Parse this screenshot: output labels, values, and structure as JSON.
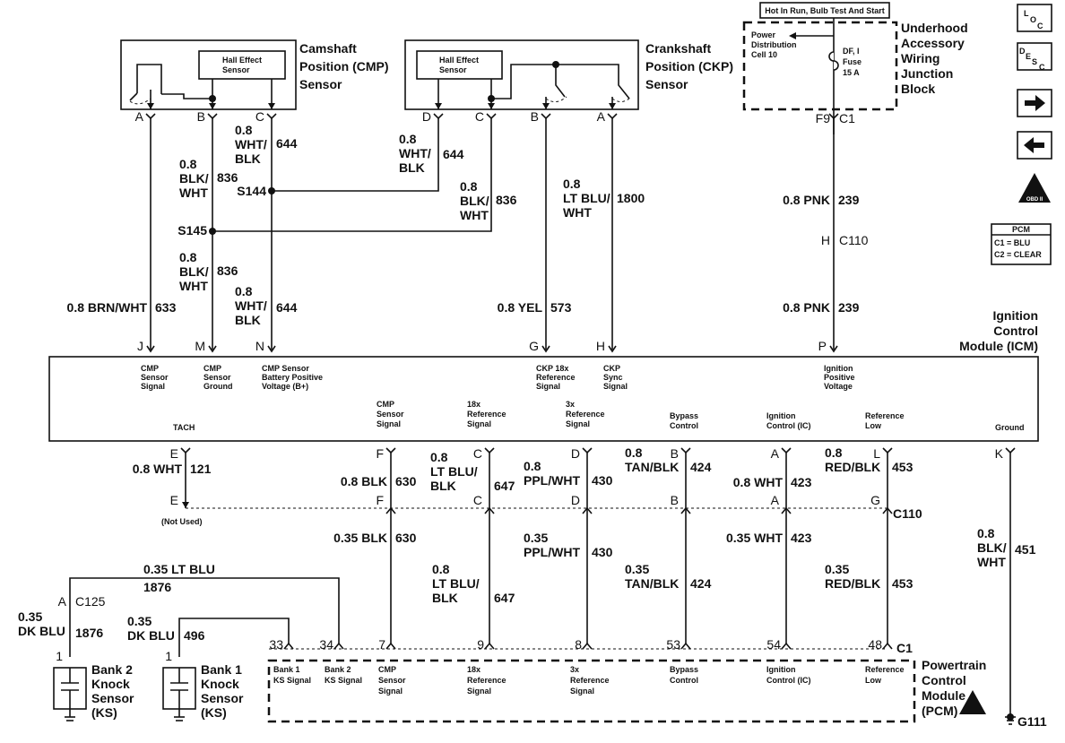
{
  "cmp": {
    "title": [
      "Camshaft",
      "Position (CMP)",
      "Sensor"
    ],
    "hall": [
      "Hall Effect",
      "Sensor"
    ],
    "pins": [
      "A",
      "B",
      "C"
    ]
  },
  "ckp": {
    "title": [
      "Crankshaft",
      "Position (CKP)",
      "Sensor"
    ],
    "hall": [
      "Hall Effect",
      "Sensor"
    ],
    "pins": [
      "D",
      "C",
      "B",
      "A"
    ]
  },
  "fuse": {
    "hot": "Hot In Run, Bulb Test And Start",
    "pdc": [
      "Power",
      "Distribution",
      "Cell 10"
    ],
    "fuse": [
      "DF, I",
      "Fuse",
      "15 A"
    ],
    "block": [
      "Underhood",
      "Accessory",
      "Wiring",
      "Junction",
      "Block"
    ],
    "conn": [
      "F9",
      "C1"
    ],
    "c110": [
      "H",
      "C110"
    ]
  },
  "wires": {
    "w633": [
      "0.8 BRN/WHT",
      "633"
    ],
    "w836a": [
      "0.8",
      "BLK/",
      "WHT",
      "836"
    ],
    "w644a": [
      "0.8",
      "WHT/",
      "BLK",
      "644"
    ],
    "w644b": [
      "0.8",
      "WHT/",
      "BLK",
      "644"
    ],
    "w836b": [
      "0.8",
      "BLK/",
      "WHT",
      "836"
    ],
    "w836c": [
      "0.8",
      "BLK/",
      "WHT",
      "836"
    ],
    "w644c": [
      "0.8",
      "WHT/",
      "BLK",
      "644"
    ],
    "w1800": [
      "0.8",
      "LT BLU/",
      "WHT",
      "1800"
    ],
    "w573": [
      "0.8 YEL",
      "573"
    ],
    "w239a": [
      "0.8 PNK",
      "239"
    ],
    "w239b": [
      "0.8 PNK",
      "239"
    ],
    "s144": "S144",
    "s145": "S145"
  },
  "icm": {
    "title": [
      "Ignition",
      "Control",
      "Module (ICM)"
    ],
    "top_pins": [
      "J",
      "M",
      "N",
      "G",
      "H",
      "P"
    ],
    "top_labels": [
      [
        "CMP",
        "Sensor",
        "Signal"
      ],
      [
        "CMP",
        "Sensor",
        "Ground"
      ],
      [
        "CMP Sensor",
        "Battery Positive",
        "Voltage (B+)"
      ],
      [
        "CKP 18x",
        "Reference",
        "Signal"
      ],
      [
        "CKP",
        "Sync",
        "Signal"
      ],
      [
        "Ignition",
        "Positive",
        "Voltage"
      ]
    ],
    "bottom_labels": [
      [
        "TACH"
      ],
      [
        "CMP",
        "Sensor",
        "Signal"
      ],
      [
        "18x",
        "Reference",
        "Signal"
      ],
      [
        "3x",
        "Reference",
        "Signal"
      ],
      [
        "Bypass",
        "Control"
      ],
      [
        "Ignition",
        "Control (IC)"
      ],
      [
        "Reference",
        "Low"
      ],
      [
        "Ground"
      ]
    ],
    "bottom_pins": [
      "E",
      "F",
      "C",
      "D",
      "B",
      "A",
      "L",
      "K"
    ]
  },
  "lower": {
    "upper_wires": [
      [
        "0.8 WHT",
        "121"
      ],
      [
        "0.8 BLK",
        "630"
      ],
      [
        "0.8",
        "LT BLU/",
        "BLK",
        "647"
      ],
      [
        "0.8",
        "PPL/WHT",
        "430"
      ],
      [
        "0.8",
        "TAN/BLK",
        "424"
      ],
      [
        "0.8 WHT",
        "423"
      ],
      [
        "0.8",
        "RED/BLK",
        "453"
      ]
    ],
    "c110_pins": [
      "E",
      "F",
      "C",
      "D",
      "B",
      "A",
      "G"
    ],
    "c110": "C110",
    "not_used": "(Not Used)",
    "lower_wires": [
      [
        "0.35 BLK",
        "630"
      ],
      [
        "0.8",
        "LT BLU/",
        "BLK",
        "647"
      ],
      [
        "0.35",
        "PPL/WHT",
        "430"
      ],
      [
        "0.35",
        "TAN/BLK",
        "424"
      ],
      [
        "0.35 WHT",
        "423"
      ],
      [
        "0.35",
        "RED/BLK",
        "453"
      ]
    ],
    "ground_wire": [
      "0.8",
      "BLK/",
      "WHT",
      "451"
    ],
    "ground": "G111"
  },
  "knock": {
    "w1876top": [
      "0.35 LT BLU",
      "1876"
    ],
    "c125": [
      "A",
      "C125"
    ],
    "w1876": [
      "0.35",
      "DK BLU",
      "1876"
    ],
    "w496": [
      "0.35",
      "DK BLU",
      "496"
    ],
    "pin": "1",
    "bank2": [
      "Bank 2",
      "Knock",
      "Sensor",
      "(KS)"
    ],
    "bank1": [
      "Bank 1",
      "Knock",
      "Sensor",
      "(KS)"
    ]
  },
  "pcm": {
    "pins": [
      "33",
      "34",
      "7",
      "9",
      "8",
      "53",
      "54",
      "48"
    ],
    "c1": "C1",
    "labels": [
      [
        "Bank 1",
        "KS Signal"
      ],
      [
        "Bank 2",
        "KS Signal"
      ],
      [
        "CMP",
        "Sensor",
        "Signal"
      ],
      [
        "18x",
        "Reference",
        "Signal"
      ],
      [
        "3x",
        "Reference",
        "Signal"
      ],
      [
        "Bypass",
        "Control"
      ],
      [
        "Ignition",
        "Control (IC)"
      ],
      [
        "Reference",
        "Low"
      ]
    ],
    "title": [
      "Powertrain",
      "Control",
      "Module",
      "(PCM)"
    ]
  },
  "side": {
    "loc": [
      "L",
      "O",
      "C"
    ],
    "desc": [
      "D",
      "E",
      "S",
      "C"
    ],
    "obd": "OBD II",
    "legend": [
      "PCM",
      "C1 = BLU",
      "C2 = CLEAR"
    ]
  }
}
